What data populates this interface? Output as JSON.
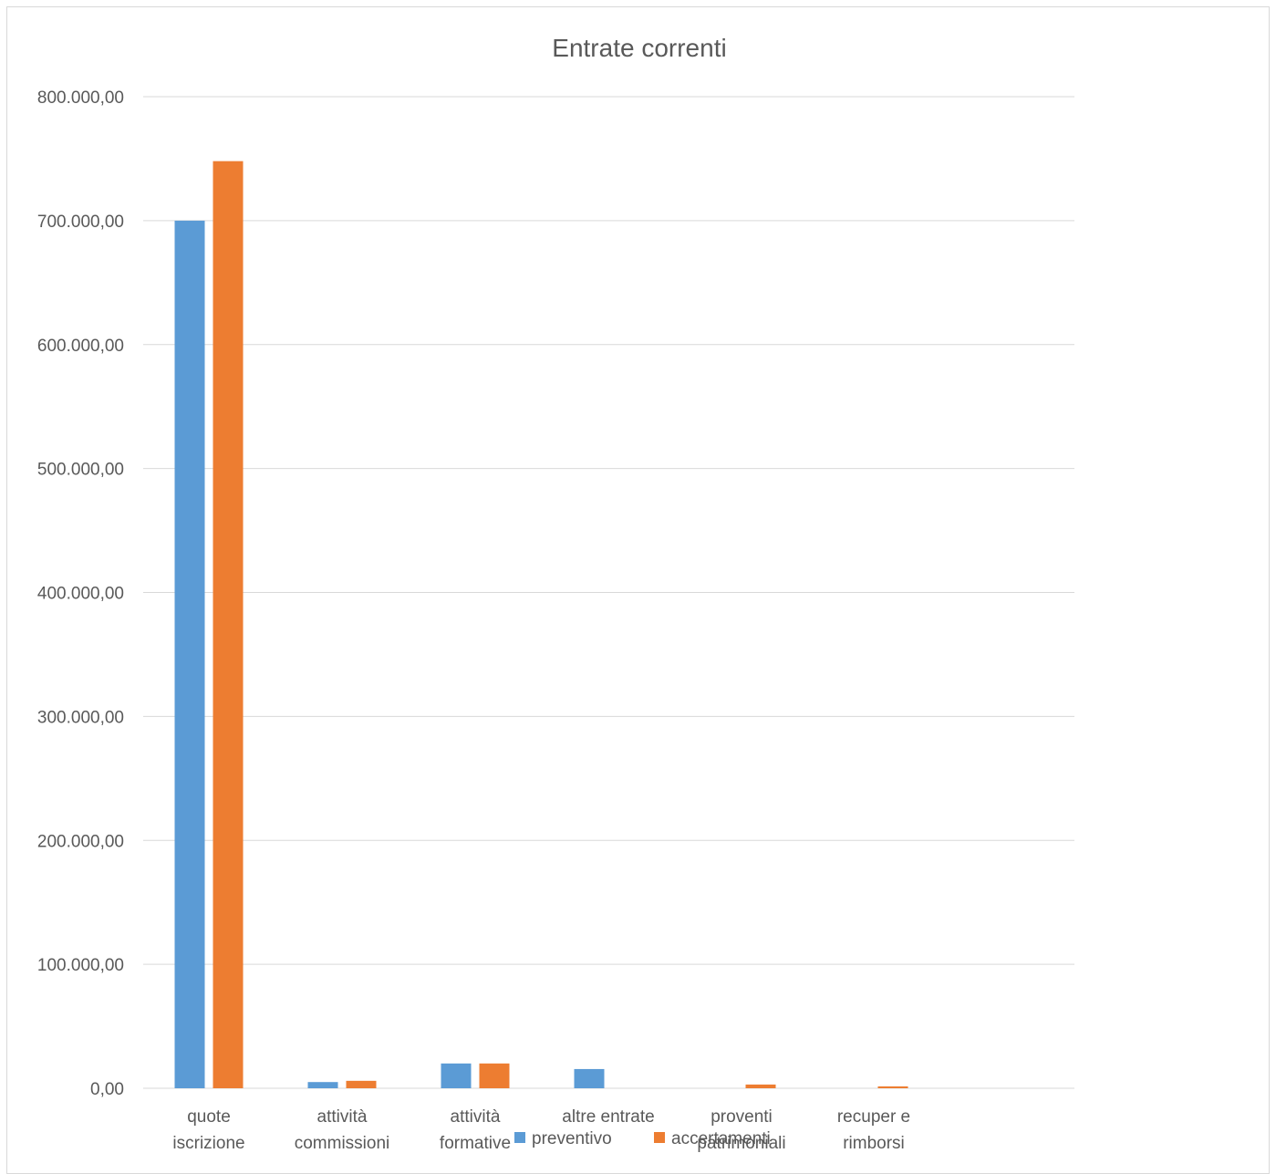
{
  "chart_data": {
    "type": "bar",
    "title": "Entrate correnti",
    "xlabel": "",
    "ylabel": "",
    "categories": [
      [
        "quote",
        "iscrizione"
      ],
      [
        "attività",
        "commissioni"
      ],
      [
        "attività",
        "formative"
      ],
      [
        "altre entrate"
      ],
      [
        "proventi",
        "patrimoniali"
      ],
      [
        "recuper e",
        "rimborsi"
      ]
    ],
    "series": [
      {
        "name": "preventivo",
        "color": "#5B9BD5",
        "values": [
          700000,
          5000,
          20000,
          15500,
          0,
          0
        ]
      },
      {
        "name": "accertamenti",
        "color": "#ED7D31",
        "values": [
          748000,
          6000,
          20000,
          0,
          3000,
          1500
        ]
      }
    ],
    "ylim": [
      0,
      800000
    ],
    "yticks": [
      0,
      100000,
      200000,
      300000,
      400000,
      500000,
      600000,
      700000,
      800000
    ],
    "ytick_labels": [
      "0,00",
      "100.000,00",
      "200.000,00",
      "300.000,00",
      "400.000,00",
      "500.000,00",
      "600.000,00",
      "700.000,00",
      "800.000,00"
    ],
    "grid": true,
    "legend_position": "bottom"
  }
}
